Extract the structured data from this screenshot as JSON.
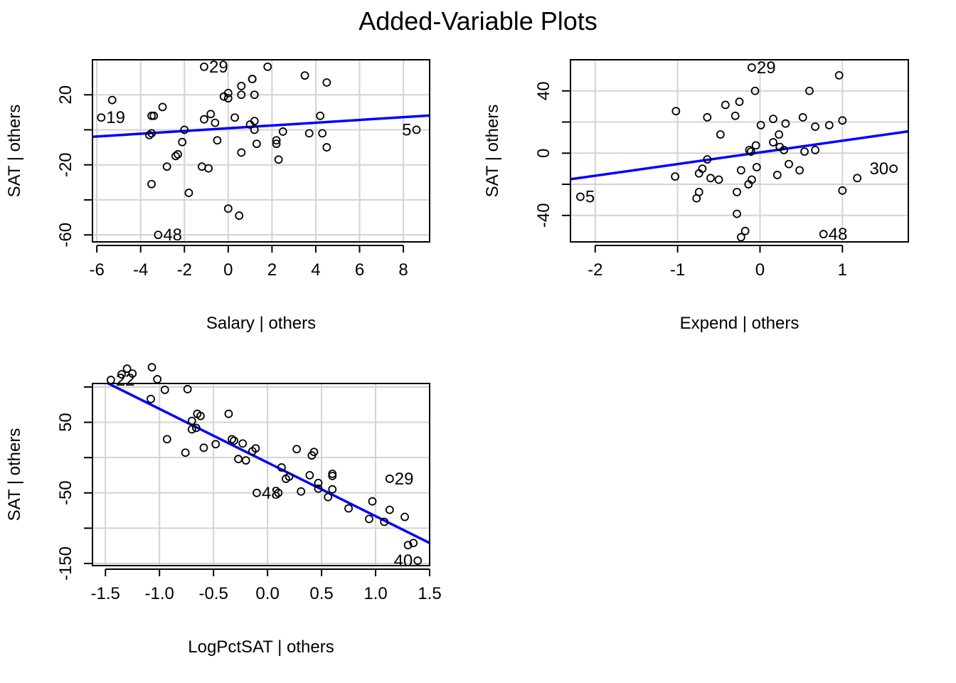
{
  "figure_title": "Added-Variable Plots",
  "chart_data": [
    {
      "type": "scatter",
      "panel": "top-left",
      "title": "",
      "xlabel": "Salary | others",
      "ylabel": "SAT  | others",
      "xlim": [
        -6.2,
        9.2
      ],
      "ylim": [
        -64,
        40
      ],
      "x_ticks": [
        -6,
        -4,
        -2,
        0,
        2,
        4,
        6,
        8
      ],
      "x_tick_labels": [
        "-6",
        "-4",
        "-2",
        "0",
        "2",
        "4",
        "6",
        "8"
      ],
      "y_ticks": [
        -60,
        -40,
        -20,
        0,
        20
      ],
      "y_tick_labels": [
        "-60",
        "",
        "-20",
        "",
        "20"
      ],
      "grid": true,
      "fit_line": {
        "intercept": 0.9,
        "slope": 0.79,
        "color": "#0000ff"
      },
      "points": [
        {
          "x": -1.1,
          "y": 36,
          "label": "29"
        },
        {
          "x": -5.3,
          "y": 17
        },
        {
          "x": -5.8,
          "y": 7,
          "label": "19"
        },
        {
          "x": -3.0,
          "y": 13
        },
        {
          "x": -3.4,
          "y": 8
        },
        {
          "x": -3.5,
          "y": 8
        },
        {
          "x": -3.5,
          "y": -2
        },
        {
          "x": -3.6,
          "y": -3
        },
        {
          "x": -2.0,
          "y": 0
        },
        {
          "x": -2.1,
          "y": -7
        },
        {
          "x": -2.3,
          "y": -14
        },
        {
          "x": -2.4,
          "y": -15
        },
        {
          "x": -2.8,
          "y": -21
        },
        {
          "x": -3.5,
          "y": -31
        },
        {
          "x": -1.8,
          "y": -36
        },
        {
          "x": -3.2,
          "y": -60,
          "label": "48"
        },
        {
          "x": -1.2,
          "y": -21
        },
        {
          "x": -0.9,
          "y": -22
        },
        {
          "x": -1.1,
          "y": 6
        },
        {
          "x": -0.6,
          "y": 4
        },
        {
          "x": -0.8,
          "y": 9
        },
        {
          "x": -0.5,
          "y": -6
        },
        {
          "x": -0.2,
          "y": 19
        },
        {
          "x": 0.0,
          "y": 18
        },
        {
          "x": 0.0,
          "y": 21
        },
        {
          "x": 0.3,
          "y": 7
        },
        {
          "x": 0.6,
          "y": 25
        },
        {
          "x": 0.6,
          "y": 20
        },
        {
          "x": 0.6,
          "y": -13
        },
        {
          "x": 0.0,
          "y": -45
        },
        {
          "x": 0.5,
          "y": -49
        },
        {
          "x": 1.1,
          "y": 29
        },
        {
          "x": 1.1,
          "y": 29
        },
        {
          "x": 1.2,
          "y": 20
        },
        {
          "x": 1.0,
          "y": 3
        },
        {
          "x": 1.2,
          "y": 0
        },
        {
          "x": 1.2,
          "y": 5
        },
        {
          "x": 1.3,
          "y": -8
        },
        {
          "x": 1.8,
          "y": 36
        },
        {
          "x": 2.2,
          "y": -6
        },
        {
          "x": 2.2,
          "y": -8
        },
        {
          "x": 2.3,
          "y": -17
        },
        {
          "x": 2.5,
          "y": -1
        },
        {
          "x": 3.5,
          "y": 31
        },
        {
          "x": 3.7,
          "y": -2
        },
        {
          "x": 4.2,
          "y": 8
        },
        {
          "x": 4.3,
          "y": -2
        },
        {
          "x": 4.5,
          "y": 27
        },
        {
          "x": 4.5,
          "y": -10
        },
        {
          "x": 8.6,
          "y": 0,
          "label": "5"
        }
      ]
    },
    {
      "type": "scatter",
      "panel": "top-right",
      "title": "",
      "xlabel": "Expend | others",
      "ylabel": "SAT  | others",
      "xlim": [
        -2.3,
        1.8
      ],
      "ylim": [
        -57,
        60
      ],
      "x_ticks": [
        -2,
        -1,
        0,
        1
      ],
      "x_tick_labels": [
        "-2",
        "-1",
        "0",
        "1"
      ],
      "y_ticks": [
        -40,
        -20,
        0,
        20,
        40
      ],
      "y_tick_labels": [
        "-40",
        "",
        "0",
        "",
        "40"
      ],
      "grid": true,
      "fit_line": {
        "intercept": 0.5,
        "slope": 7.5,
        "color": "#0000ff"
      },
      "points": [
        {
          "x": -0.1,
          "y": 55,
          "label": "29"
        },
        {
          "x": -0.06,
          "y": 40
        },
        {
          "x": 0.96,
          "y": 50
        },
        {
          "x": 0.6,
          "y": 40
        },
        {
          "x": -1.02,
          "y": 27
        },
        {
          "x": -0.42,
          "y": 31
        },
        {
          "x": -0.25,
          "y": 33
        },
        {
          "x": -0.64,
          "y": 23
        },
        {
          "x": -0.3,
          "y": 24
        },
        {
          "x": 0.16,
          "y": 22
        },
        {
          "x": 0.52,
          "y": 23
        },
        {
          "x": 1.0,
          "y": 21
        },
        {
          "x": 0.01,
          "y": 18
        },
        {
          "x": 0.31,
          "y": 19
        },
        {
          "x": 0.67,
          "y": 17
        },
        {
          "x": 0.84,
          "y": 18
        },
        {
          "x": -0.48,
          "y": 12
        },
        {
          "x": 0.23,
          "y": 12
        },
        {
          "x": 0.16,
          "y": 7
        },
        {
          "x": -0.05,
          "y": 5
        },
        {
          "x": 0.24,
          "y": 4
        },
        {
          "x": 0.29,
          "y": 2
        },
        {
          "x": -0.13,
          "y": 2
        },
        {
          "x": -0.11,
          "y": 1
        },
        {
          "x": 0.54,
          "y": 1
        },
        {
          "x": 0.67,
          "y": 2
        },
        {
          "x": -0.64,
          "y": -4
        },
        {
          "x": -0.7,
          "y": -10
        },
        {
          "x": -0.74,
          "y": -13
        },
        {
          "x": -1.03,
          "y": -15
        },
        {
          "x": -0.6,
          "y": -16
        },
        {
          "x": -0.5,
          "y": -17
        },
        {
          "x": -0.23,
          "y": -11
        },
        {
          "x": -0.04,
          "y": -9
        },
        {
          "x": 0.21,
          "y": -14
        },
        {
          "x": -0.1,
          "y": -17
        },
        {
          "x": -0.14,
          "y": -20
        },
        {
          "x": 0.35,
          "y": -7
        },
        {
          "x": 0.48,
          "y": -11
        },
        {
          "x": -0.74,
          "y": -25
        },
        {
          "x": -0.77,
          "y": -29
        },
        {
          "x": -0.28,
          "y": -25
        },
        {
          "x": -0.28,
          "y": -39
        },
        {
          "x": -0.18,
          "y": -50
        },
        {
          "x": -0.23,
          "y": -54
        },
        {
          "x": 0.77,
          "y": -52,
          "label": "48"
        },
        {
          "x": 1.0,
          "y": -24
        },
        {
          "x": 1.18,
          "y": -16
        },
        {
          "x": 1.62,
          "y": -10,
          "label": "30"
        },
        {
          "x": -2.18,
          "y": -28,
          "label": "5"
        }
      ]
    },
    {
      "type": "scatter",
      "panel": "bottom-left",
      "title": "",
      "xlabel": "LogPctSAT | others",
      "ylabel": "SAT  | others",
      "xlim": [
        -1.62,
        1.5
      ],
      "ylim": [
        -153,
        105
      ],
      "x_ticks": [
        -1.5,
        -1.0,
        -0.5,
        0.0,
        0.5,
        1.0,
        1.5
      ],
      "x_tick_labels": [
        "-1.5",
        "-1.0",
        "-0.5",
        "0.0",
        "0.5",
        "1.0",
        "1.5"
      ],
      "y_ticks": [
        -150,
        -100,
        -50,
        0,
        50,
        100
      ],
      "y_tick_labels": [
        "-150",
        "",
        "-50",
        "",
        "50",
        ""
      ],
      "grid": true,
      "fit_line": {
        "intercept": -7,
        "slope": -76,
        "color": "#0000ff"
      },
      "points": [
        {
          "x": -1.45,
          "y": 110,
          "label": "22"
        },
        {
          "x": -1.35,
          "y": 118
        },
        {
          "x": -1.3,
          "y": 126
        },
        {
          "x": -1.25,
          "y": 119
        },
        {
          "x": -1.07,
          "y": 128
        },
        {
          "x": -1.02,
          "y": 111
        },
        {
          "x": -0.95,
          "y": 96
        },
        {
          "x": -1.08,
          "y": 83
        },
        {
          "x": -0.74,
          "y": 97
        },
        {
          "x": -0.65,
          "y": 62
        },
        {
          "x": -0.62,
          "y": 59
        },
        {
          "x": -0.7,
          "y": 52
        },
        {
          "x": -0.7,
          "y": 40
        },
        {
          "x": -0.66,
          "y": 42
        },
        {
          "x": -0.36,
          "y": 62
        },
        {
          "x": -0.33,
          "y": 26
        },
        {
          "x": -0.31,
          "y": 24
        },
        {
          "x": -0.23,
          "y": 20
        },
        {
          "x": -0.14,
          "y": 9
        },
        {
          "x": -0.11,
          "y": 13
        },
        {
          "x": -0.48,
          "y": 19
        },
        {
          "x": -0.59,
          "y": 14
        },
        {
          "x": -0.93,
          "y": 26
        },
        {
          "x": -0.76,
          "y": 7
        },
        {
          "x": -0.27,
          "y": -2
        },
        {
          "x": -0.2,
          "y": -4
        },
        {
          "x": -0.1,
          "y": -50,
          "label": "48"
        },
        {
          "x": 0.1,
          "y": -50
        },
        {
          "x": 0.13,
          "y": -14
        },
        {
          "x": 0.17,
          "y": -30
        },
        {
          "x": 0.2,
          "y": -27
        },
        {
          "x": 0.27,
          "y": 12
        },
        {
          "x": 0.31,
          "y": -48
        },
        {
          "x": 0.39,
          "y": -25
        },
        {
          "x": 0.41,
          "y": 3
        },
        {
          "x": 0.43,
          "y": 8
        },
        {
          "x": 0.47,
          "y": -36
        },
        {
          "x": 0.47,
          "y": -44
        },
        {
          "x": 0.56,
          "y": -56
        },
        {
          "x": 0.6,
          "y": -23
        },
        {
          "x": 0.6,
          "y": -26
        },
        {
          "x": 0.6,
          "y": -45
        },
        {
          "x": 0.75,
          "y": -72
        },
        {
          "x": 0.94,
          "y": -87
        },
        {
          "x": 0.97,
          "y": -62
        },
        {
          "x": 1.08,
          "y": -91
        },
        {
          "x": 1.13,
          "y": -30,
          "label": "29"
        },
        {
          "x": 1.13,
          "y": -74
        },
        {
          "x": 1.27,
          "y": -84
        },
        {
          "x": 1.3,
          "y": -124
        },
        {
          "x": 1.35,
          "y": -121
        },
        {
          "x": 1.39,
          "y": -146,
          "label": "40"
        }
      ]
    }
  ]
}
